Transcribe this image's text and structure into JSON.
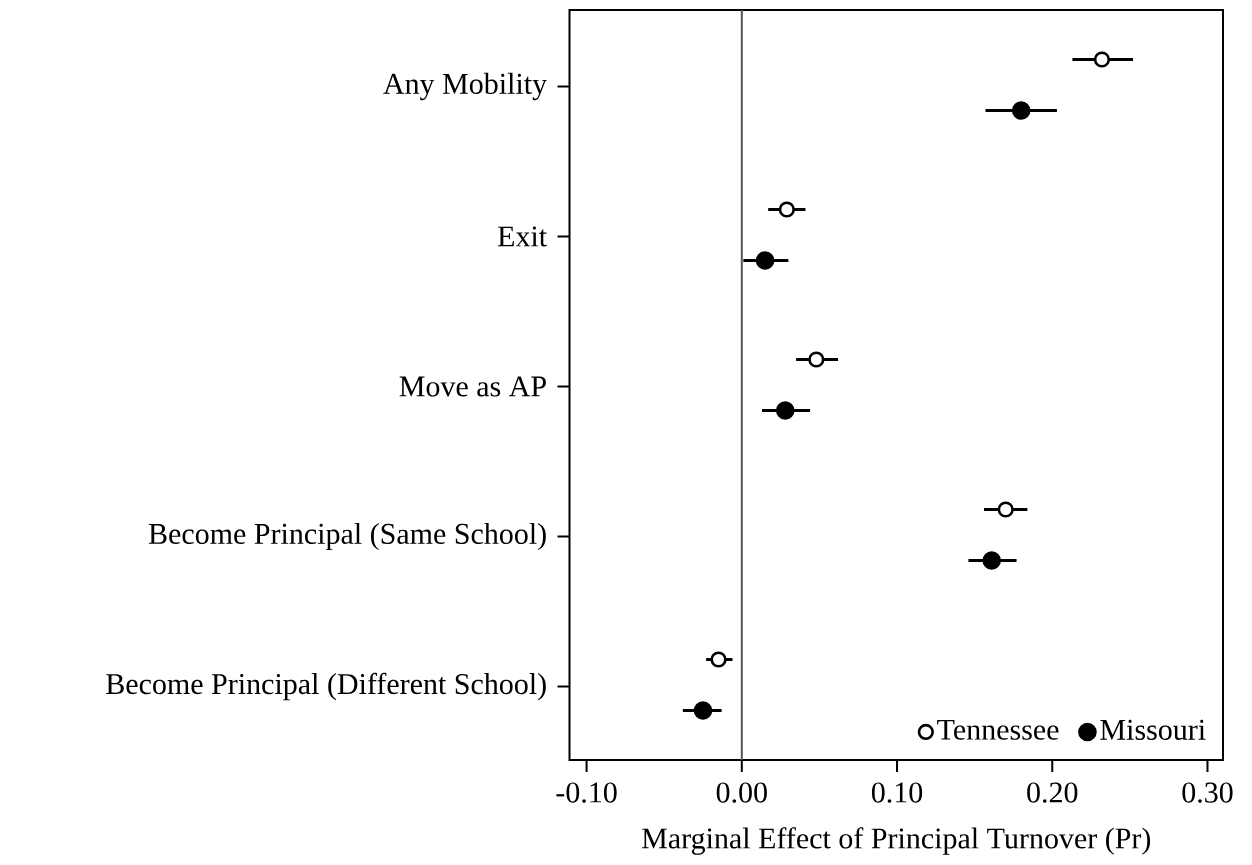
{
  "chart_data": {
    "type": "scatter",
    "orientation": "horizontal",
    "xlabel": "Marginal Effect of Principal Turnover (Pr)",
    "categories": [
      "Any Mobility",
      "Exit",
      "Move as AP",
      "Become Principal (Same School)",
      "Become Principal (Different School)"
    ],
    "series": [
      {
        "name": "Tennessee",
        "color": "#000000",
        "values": [
          0.232,
          0.029,
          0.048,
          0.17,
          -0.015
        ],
        "errors": [
          [
            0.213,
            0.252
          ],
          [
            0.017,
            0.041
          ],
          [
            0.035,
            0.062
          ],
          [
            0.156,
            0.184
          ],
          [
            -0.023,
            -0.006
          ]
        ]
      },
      {
        "name": "Missouri",
        "color": "#000000",
        "values": [
          0.18,
          0.015,
          0.028,
          0.161,
          -0.025
        ],
        "errors": [
          [
            0.157,
            0.203
          ],
          [
            0.001,
            0.03
          ],
          [
            0.013,
            0.044
          ],
          [
            0.146,
            0.177
          ],
          [
            -0.038,
            -0.013
          ]
        ]
      }
    ],
    "xlim": [
      -0.111,
      0.31
    ],
    "xticks": [
      {
        "value": -0.1,
        "label": "-0.10"
      },
      {
        "value": 0,
        "label": "0.00"
      },
      {
        "value": 0.1,
        "label": "0.10"
      },
      {
        "value": 0.2,
        "label": "0.20"
      },
      {
        "value": 0.3,
        "label": "0.30"
      }
    ],
    "ref_lines": [
      {
        "axis": "x",
        "value": 0,
        "color": "#555555"
      }
    ],
    "marker": "circle",
    "grid": false,
    "legend": "bottom right"
  }
}
